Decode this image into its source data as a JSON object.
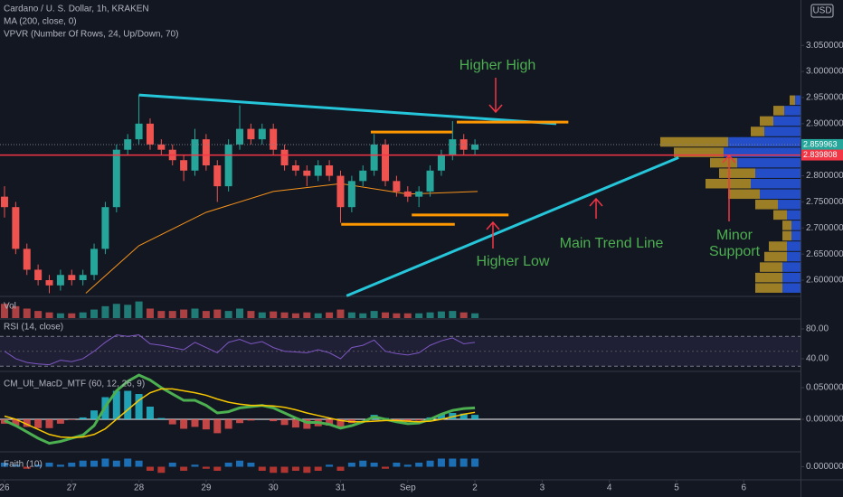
{
  "chart_data": [
    {
      "type": "candlestick",
      "title": "Cardano / U. S. Dollar, 1h, KRAKEN",
      "indicators": [
        "MA (200, close, 0)",
        "VPVR (Number Of Rows, 24, Up/Down, 70)"
      ],
      "currency": "USD",
      "x": [
        0,
        0.1667,
        0.3333,
        0.5,
        0.6667,
        0.8333,
        1,
        1.1667,
        1.3333,
        1.5,
        1.6667,
        1.8333,
        2,
        2.1667,
        2.3333,
        2.5,
        2.6667,
        2.8333,
        3,
        3.1667,
        3.3333,
        3.5,
        3.6667,
        3.8333,
        4,
        4.1667,
        4.3333,
        4.5,
        4.6667,
        4.8333,
        5,
        5.1667,
        5.3333,
        5.5,
        5.6667,
        5.8333,
        6,
        6.1667,
        6.3333,
        6.5,
        6.6667,
        6.8333,
        7
      ],
      "open": [
        2.76,
        2.74,
        2.66,
        2.62,
        2.6,
        2.59,
        2.61,
        2.6,
        2.61,
        2.66,
        2.74,
        2.85,
        2.87,
        2.9,
        2.86,
        2.85,
        2.83,
        2.81,
        2.87,
        2.82,
        2.78,
        2.86,
        2.89,
        2.87,
        2.89,
        2.85,
        2.82,
        2.81,
        2.8,
        2.82,
        2.8,
        2.74,
        2.79,
        2.81,
        2.86,
        2.79,
        2.77,
        2.76,
        2.77,
        2.81,
        2.84,
        2.87,
        2.85
      ],
      "high": [
        2.78,
        2.75,
        2.67,
        2.63,
        2.61,
        2.62,
        2.62,
        2.62,
        2.67,
        2.75,
        2.86,
        2.88,
        2.955,
        2.91,
        2.87,
        2.86,
        2.84,
        2.89,
        2.88,
        2.83,
        2.87,
        2.935,
        2.9,
        2.9,
        2.9,
        2.86,
        2.83,
        2.82,
        2.83,
        2.83,
        2.81,
        2.8,
        2.82,
        2.88,
        2.87,
        2.8,
        2.78,
        2.78,
        2.82,
        2.85,
        2.905,
        2.88,
        2.87
      ],
      "low": [
        2.72,
        2.65,
        2.61,
        2.59,
        2.575,
        2.58,
        2.59,
        2.59,
        2.6,
        2.65,
        2.73,
        2.84,
        2.86,
        2.85,
        2.84,
        2.82,
        2.79,
        2.8,
        2.81,
        2.75,
        2.77,
        2.85,
        2.86,
        2.86,
        2.84,
        2.81,
        2.8,
        2.78,
        2.79,
        2.79,
        2.71,
        2.73,
        2.78,
        2.8,
        2.78,
        2.76,
        2.75,
        2.74,
        2.76,
        2.8,
        2.83,
        2.84,
        2.84
      ],
      "close": [
        2.74,
        2.66,
        2.62,
        2.6,
        2.59,
        2.61,
        2.6,
        2.61,
        2.66,
        2.74,
        2.85,
        2.87,
        2.9,
        2.86,
        2.85,
        2.83,
        2.81,
        2.87,
        2.82,
        2.78,
        2.86,
        2.89,
        2.87,
        2.89,
        2.85,
        2.82,
        2.81,
        2.8,
        2.82,
        2.8,
        2.74,
        2.79,
        2.81,
        2.86,
        2.79,
        2.77,
        2.76,
        2.77,
        2.81,
        2.84,
        2.87,
        2.85,
        2.86
      ],
      "up_color": "#26a69a",
      "down_color": "#ef5350",
      "ma": {
        "x": [
          1.21,
          2,
          3,
          4,
          5,
          6,
          7.04
        ],
        "values": [
          2.575,
          2.666,
          2.73,
          2.77,
          2.785,
          2.765,
          2.77
        ],
        "color": "#f7931a"
      },
      "xlim": [
        -0.067,
        11.844
      ],
      "xticks": [
        {
          "value": 0,
          "label": "26"
        },
        {
          "value": 1,
          "label": "27"
        },
        {
          "value": 2,
          "label": "28"
        },
        {
          "value": 3,
          "label": "29"
        },
        {
          "value": 4,
          "label": "30"
        },
        {
          "value": 5,
          "label": "31"
        },
        {
          "value": 6,
          "label": "Sep"
        },
        {
          "value": 7,
          "label": "2"
        },
        {
          "value": 8,
          "label": "3"
        },
        {
          "value": 9,
          "label": "4"
        },
        {
          "value": 10,
          "label": "5"
        },
        {
          "value": 11,
          "label": "6"
        }
      ],
      "ylim": [
        2.5706,
        3.137
      ],
      "yticks": [
        {
          "value": 2.6,
          "label": "2.600000"
        },
        {
          "value": 2.65,
          "label": "2.650000"
        },
        {
          "value": 2.7,
          "label": "2.700000"
        },
        {
          "value": 2.75,
          "label": "2.750000"
        },
        {
          "value": 2.8,
          "label": "2.800000"
        },
        {
          "value": 2.85,
          "label": "2.850000"
        },
        {
          "value": 2.9,
          "label": "2.900000"
        },
        {
          "value": 2.95,
          "label": "2.950000"
        },
        {
          "value": 3.0,
          "label": "3.000000"
        },
        {
          "value": 3.05,
          "label": "3.050000"
        }
      ],
      "price_labels": [
        {
          "value": 2.859963,
          "color": "#26a69a",
          "line": "dotted"
        },
        {
          "value": 2.839808,
          "color": "#f23645",
          "line": "solid"
        }
      ],
      "volume_profile": {
        "prices": [
          2.585,
          2.605,
          2.625,
          2.645,
          2.665,
          2.685,
          2.705,
          2.725,
          2.745,
          2.765,
          2.785,
          2.805,
          2.825,
          2.845,
          2.865,
          2.885,
          2.905,
          2.925,
          2.945
        ],
        "up": [
          20,
          20,
          20,
          15,
          15,
          10,
          10,
          15,
          25,
          45,
          55,
          50,
          70,
          85,
          80,
          40,
          30,
          18,
          6
        ],
        "down": [
          30,
          30,
          25,
          25,
          20,
          10,
          10,
          15,
          25,
          35,
          50,
          40,
          30,
          55,
          75,
          15,
          15,
          12,
          6
        ],
        "up_color": "#2962ff",
        "down_color": "#c9a227"
      },
      "lines": [
        {
          "x": [
            2.0,
            8.21
          ],
          "y": [
            2.955,
            2.9
          ],
          "color": "#26c6da"
        },
        {
          "x": [
            5.09,
            10.03
          ],
          "y": [
            2.57,
            2.835
          ],
          "color": "#26c6da"
        },
        {
          "x": [
            5.45,
            6.66
          ],
          "y": [
            2.884,
            2.884
          ],
          "color": "#ff9800"
        },
        {
          "x": [
            5.01,
            6.7
          ],
          "y": [
            2.707,
            2.707
          ],
          "color": "#ff9800"
        },
        {
          "x": [
            6.06,
            7.5
          ],
          "y": [
            2.725,
            2.725
          ],
          "color": "#ff9800"
        },
        {
          "x": [
            6.73,
            8.39
          ],
          "y": [
            2.903,
            2.903
          ],
          "color": "#ff9800"
        }
      ],
      "annotations": [
        "Higher High",
        "Higher Low",
        "Main Trend Line",
        "Minor",
        "Support"
      ]
    },
    {
      "type": "bar",
      "title": "Vol",
      "values": [
        30,
        25,
        20,
        15,
        12,
        10,
        10,
        12,
        18,
        25,
        30,
        28,
        35,
        20,
        15,
        15,
        18,
        20,
        15,
        18,
        15,
        20,
        15,
        12,
        14,
        12,
        10,
        12,
        10,
        12,
        18,
        12,
        10,
        15,
        12,
        10,
        10,
        10,
        12,
        14,
        15,
        12,
        10
      ],
      "ylim": [
        0,
        40
      ]
    },
    {
      "type": "line",
      "title": "RSI (14, close)",
      "values": [
        50,
        40,
        35,
        33,
        32,
        38,
        36,
        40,
        50,
        62,
        72,
        70,
        72,
        60,
        58,
        55,
        52,
        62,
        55,
        48,
        62,
        66,
        60,
        63,
        55,
        50,
        49,
        48,
        52,
        48,
        40,
        55,
        58,
        65,
        50,
        47,
        45,
        48,
        58,
        64,
        68,
        60,
        62
      ],
      "color": "#7e57c2",
      "ylim": [
        24.2,
        90.9
      ],
      "yticks": [
        {
          "value": 40,
          "label": "40.00"
        },
        {
          "value": 80,
          "label": "80.00"
        }
      ],
      "band": [
        30,
        70
      ],
      "midline": 50
    },
    {
      "type": "macd",
      "title": "CM_Ult_MacD_MTF (60, 12, 26, 9)",
      "series": [
        {
          "type": "bar",
          "color": "#26c6da",
          "negative_color": "#ef5350",
          "values": [
            -0.007,
            -0.01,
            -0.012,
            -0.014,
            -0.014,
            -0.007,
            -0.001,
            0.003,
            0.014,
            0.035,
            0.045,
            0.045,
            0.04,
            0.02,
            0.002,
            -0.008,
            -0.015,
            -0.012,
            -0.016,
            -0.022,
            -0.015,
            -0.006,
            -0.002,
            0.0,
            -0.003,
            -0.009,
            -0.013,
            -0.015,
            -0.011,
            -0.01,
            -0.012,
            -0.006,
            0.0,
            0.007,
            0.002,
            -0.002,
            -0.004,
            -0.002,
            0.003,
            0.008,
            0.01,
            0.009,
            0.007
          ]
        },
        {
          "type": "line",
          "color": "#4caf50",
          "values": [
            -0.002,
            -0.01,
            -0.02,
            -0.03,
            -0.038,
            -0.035,
            -0.03,
            -0.025,
            -0.01,
            0.02,
            0.045,
            0.06,
            0.07,
            0.062,
            0.05,
            0.04,
            0.03,
            0.03,
            0.022,
            0.01,
            0.012,
            0.018,
            0.02,
            0.022,
            0.018,
            0.01,
            0.002,
            -0.005,
            -0.005,
            -0.008,
            -0.014,
            -0.01,
            -0.004,
            0.004,
            0.0,
            -0.004,
            -0.007,
            -0.006,
            0.0,
            0.008,
            0.014,
            0.017,
            0.018
          ]
        },
        {
          "type": "line",
          "color": "#f7c600",
          "values": [
            0.005,
            0.0,
            -0.008,
            -0.016,
            -0.024,
            -0.028,
            -0.029,
            -0.028,
            -0.024,
            -0.015,
            0.0,
            0.015,
            0.03,
            0.042,
            0.048,
            0.048,
            0.045,
            0.042,
            0.038,
            0.032,
            0.027,
            0.024,
            0.022,
            0.022,
            0.021,
            0.019,
            0.015,
            0.01,
            0.006,
            0.002,
            -0.002,
            -0.004,
            -0.004,
            -0.003,
            -0.002,
            -0.002,
            -0.003,
            -0.004,
            -0.003,
            0.0,
            0.004,
            0.008,
            0.011
          ]
        }
      ],
      "ylim": [
        -0.0486,
        0.0729
      ],
      "yticks": [
        {
          "value": 0,
          "label": "0.000000"
        },
        {
          "value": 0.05,
          "label": "0.050000"
        }
      ]
    },
    {
      "type": "bar",
      "title": "Faith (10)",
      "color": "#2196f3",
      "negative_color": "#f44336",
      "values": [
        0.002,
        0.001,
        -0.001,
        0.001,
        0.002,
        0.001,
        0.002,
        0.003,
        0.003,
        0.004,
        0.003,
        0.004,
        0.003,
        -0.002,
        -0.003,
        0.002,
        -0.002,
        0.001,
        -0.001,
        -0.002,
        0.002,
        0.003,
        0.002,
        -0.002,
        -0.003,
        -0.003,
        -0.002,
        -0.003,
        -0.002,
        0.001,
        -0.002,
        0.002,
        0.003,
        0.002,
        -0.001,
        0.002,
        0.001,
        0.002,
        0.003,
        0.004,
        0.004,
        0.004,
        0.004
      ],
      "ylim": [
        -0.006,
        0.006
      ],
      "yticks": [
        {
          "value": 0,
          "label": "0.000000"
        }
      ]
    }
  ]
}
